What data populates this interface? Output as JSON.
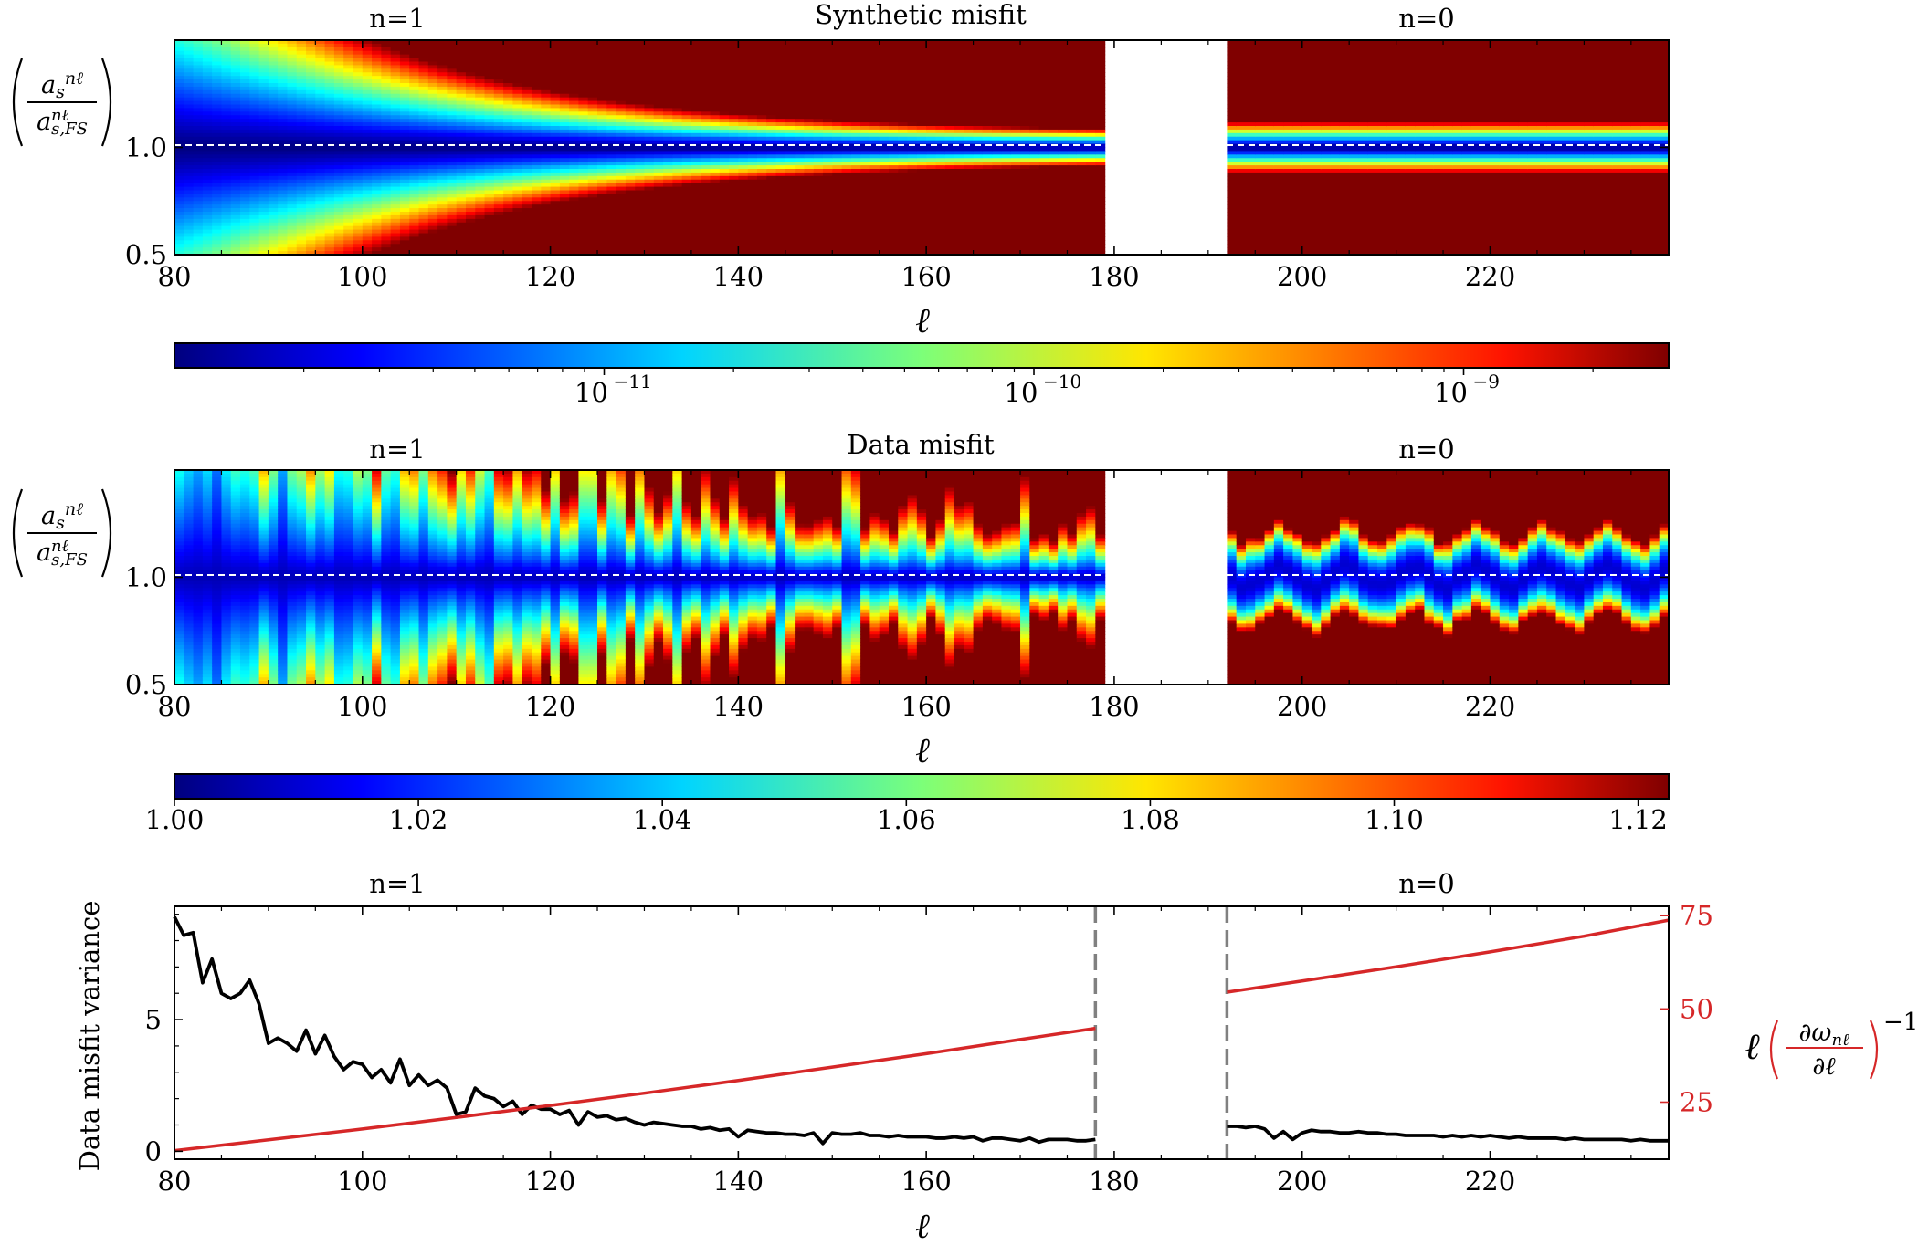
{
  "chart_data": [
    {
      "type": "heatmap",
      "title": "Synthetic misfit",
      "branch_labels": {
        "n1": "n=1",
        "n0": "n=0"
      },
      "xlabel": "ℓ",
      "ylabel": "(a_s^{nℓ} / a_{s,FS}^{nℓ})",
      "xlim": [
        80,
        239
      ],
      "ylim": [
        0.5,
        1.5
      ],
      "gap": [
        179,
        192
      ],
      "xticks": [
        "80",
        "100",
        "120",
        "140",
        "160",
        "180",
        "200",
        "220"
      ],
      "yticks": [
        "0.5",
        "1.0"
      ],
      "reference_line": 1.0,
      "colorbar": {
        "scale": "log",
        "ticks": [
          "10",
          "10",
          "10"
        ],
        "exponents": [
          "-11",
          "-10",
          "-9"
        ],
        "tick_values": [
          1e-11,
          1e-10,
          1e-09
        ],
        "range": [
          1e-12,
          3e-09
        ]
      }
    },
    {
      "type": "heatmap",
      "title": "Data misfit",
      "branch_labels": {
        "n1": "n=1",
        "n0": "n=0"
      },
      "xlabel": "ℓ",
      "ylabel": "(a_s^{nℓ} / a_{s,FS}^{nℓ})",
      "xlim": [
        80,
        239
      ],
      "ylim": [
        0.5,
        1.5
      ],
      "gap": [
        179,
        192
      ],
      "xticks": [
        "80",
        "100",
        "120",
        "140",
        "160",
        "180",
        "200",
        "220"
      ],
      "yticks": [
        "0.5",
        "1.0"
      ],
      "reference_line": 1.0,
      "colorbar": {
        "scale": "linear",
        "ticks": [
          "1.00",
          "1.02",
          "1.04",
          "1.06",
          "1.08",
          "1.10",
          "1.12"
        ],
        "tick_values": [
          1.0,
          1.02,
          1.04,
          1.06,
          1.08,
          1.1,
          1.12
        ],
        "range": [
          1.0,
          1.1225
        ]
      }
    },
    {
      "type": "line",
      "branch_labels": {
        "n1": "n=1",
        "n0": "n=0"
      },
      "xlabel": "ℓ",
      "ylabel": "Data misfit variance",
      "ylabel_right": "ℓ (∂ω_nℓ/∂ℓ)^-1",
      "xlim": [
        80,
        239
      ],
      "ylim": [
        -0.3,
        9.3
      ],
      "ylim_right": [
        9.7,
        77.5
      ],
      "xticks": [
        "80",
        "100",
        "120",
        "140",
        "160",
        "180",
        "200",
        "220"
      ],
      "yticks": [
        "0",
        "5"
      ],
      "yticks_right": [
        "25",
        "50",
        "75"
      ],
      "gap_lines": [
        178,
        192
      ],
      "series": [
        {
          "name": "Data misfit variance",
          "color": "#000000",
          "segments": [
            {
              "x": [
                80,
                81,
                82,
                83,
                84,
                85,
                86,
                87,
                88,
                89,
                90,
                91,
                92,
                93,
                94,
                95,
                96,
                97,
                98,
                99,
                100,
                101,
                102,
                103,
                104,
                105,
                106,
                107,
                108,
                109,
                110,
                111,
                112,
                113,
                114,
                115,
                116,
                117,
                118,
                119,
                120,
                121,
                122,
                123,
                124,
                125,
                126,
                127,
                128,
                129,
                130,
                131,
                132,
                133,
                134,
                135,
                136,
                137,
                138,
                139,
                140,
                141,
                142,
                143,
                144,
                145,
                146,
                147,
                148,
                149,
                150,
                151,
                152,
                153,
                154,
                155,
                156,
                157,
                158,
                159,
                160,
                161,
                162,
                163,
                164,
                165,
                166,
                167,
                168,
                169,
                170,
                171,
                172,
                173,
                174,
                175,
                176,
                177,
                178
              ],
              "y": [
                8.9,
                8.2,
                8.3,
                6.4,
                7.3,
                6.0,
                5.8,
                6.0,
                6.5,
                5.6,
                4.1,
                4.3,
                4.1,
                3.8,
                4.6,
                3.7,
                4.4,
                3.6,
                3.1,
                3.4,
                3.3,
                2.8,
                3.1,
                2.6,
                3.5,
                2.5,
                2.9,
                2.5,
                2.7,
                2.4,
                1.4,
                1.5,
                2.4,
                2.1,
                2.0,
                1.7,
                1.9,
                1.4,
                1.75,
                1.6,
                1.6,
                1.4,
                1.55,
                1.0,
                1.5,
                1.3,
                1.35,
                1.2,
                1.25,
                1.1,
                1.0,
                1.1,
                1.05,
                1.0,
                0.95,
                0.95,
                0.85,
                0.9,
                0.8,
                0.85,
                0.55,
                0.8,
                0.75,
                0.7,
                0.7,
                0.65,
                0.65,
                0.6,
                0.7,
                0.3,
                0.7,
                0.65,
                0.65,
                0.7,
                0.6,
                0.6,
                0.55,
                0.6,
                0.55,
                0.55,
                0.55,
                0.5,
                0.5,
                0.55,
                0.5,
                0.55,
                0.4,
                0.5,
                0.5,
                0.45,
                0.4,
                0.5,
                0.35,
                0.45,
                0.45,
                0.45,
                0.4,
                0.4,
                0.45
              ]
            },
            {
              "x": [
                192,
                193,
                194,
                195,
                196,
                197,
                198,
                199,
                200,
                201,
                202,
                203,
                204,
                205,
                206,
                207,
                208,
                209,
                210,
                211,
                212,
                213,
                214,
                215,
                216,
                217,
                218,
                219,
                220,
                221,
                222,
                223,
                224,
                225,
                226,
                227,
                228,
                229,
                230,
                231,
                232,
                233,
                234,
                235,
                236,
                237,
                238,
                239
              ],
              "y": [
                0.95,
                0.95,
                0.9,
                0.95,
                0.85,
                0.5,
                0.75,
                0.45,
                0.7,
                0.8,
                0.75,
                0.75,
                0.7,
                0.7,
                0.75,
                0.7,
                0.7,
                0.65,
                0.65,
                0.6,
                0.6,
                0.6,
                0.6,
                0.55,
                0.6,
                0.55,
                0.6,
                0.55,
                0.6,
                0.55,
                0.5,
                0.55,
                0.5,
                0.5,
                0.5,
                0.5,
                0.45,
                0.5,
                0.45,
                0.45,
                0.45,
                0.45,
                0.45,
                0.4,
                0.45,
                0.4,
                0.4,
                0.4
              ]
            }
          ]
        },
        {
          "name": "ℓ (∂ω_nℓ/∂ℓ)^-1",
          "color": "#d62728",
          "axis": "right",
          "segments": [
            {
              "x": [
                80,
                90,
                100,
                110,
                120,
                130,
                140,
                150,
                160,
                170,
                178
              ],
              "y": [
                12.0,
                14.9,
                17.8,
                20.9,
                24.1,
                27.4,
                30.8,
                34.4,
                38.0,
                41.8,
                44.8
              ]
            },
            {
              "x": [
                192,
                200,
                210,
                220,
                230,
                239
              ],
              "y": [
                54.5,
                57.5,
                61.3,
                65.3,
                69.5,
                73.8
              ]
            }
          ]
        }
      ]
    }
  ]
}
